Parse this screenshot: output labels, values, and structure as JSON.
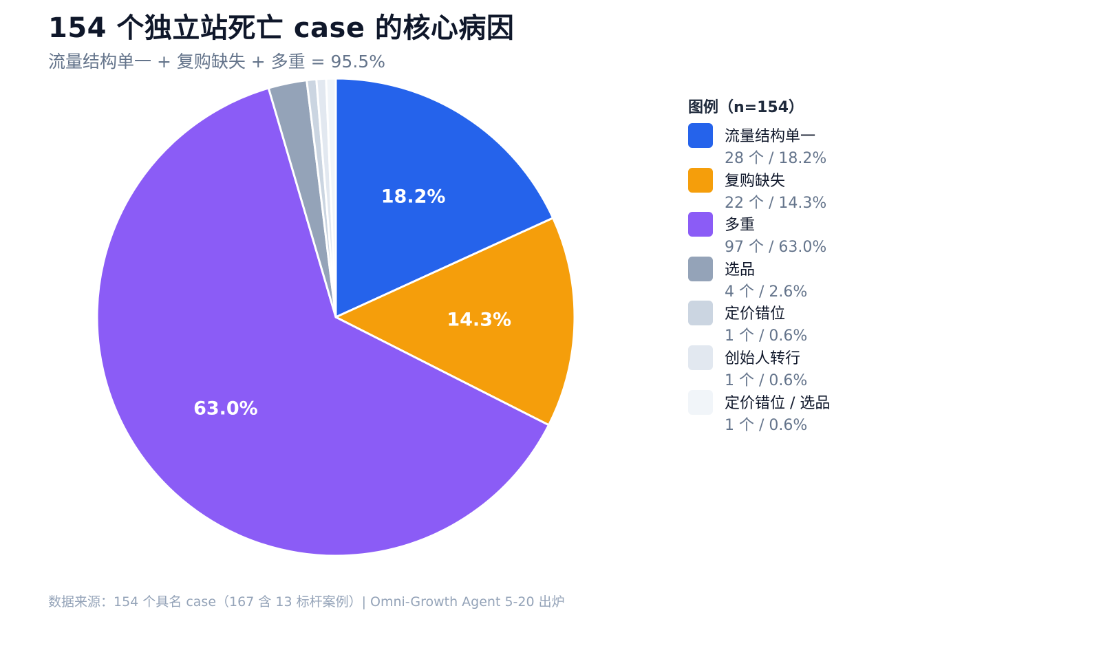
{
  "title": "154 个独立站死亡 case 的核心病因",
  "subtitle": "流量结构单一 + 复购缺失 + 多重 = 95.5%",
  "legend": {
    "title": "图例（n=154）"
  },
  "source": "数据来源：154 个具名 case（167 含 13 标杆案例）| Omni-Growth Agent 5-20 出炉",
  "chart_data": {
    "type": "pie",
    "total": 154,
    "start": "12 o'clock",
    "direction": "clockwise",
    "legend_position": "right",
    "slices": [
      {
        "label": "流量结构单一",
        "count": 28,
        "percent": 18.2,
        "count_text": "28 个 / 18.2%",
        "slice_label": "18.2%",
        "color": "#2563eb"
      },
      {
        "label": "复购缺失",
        "count": 22,
        "percent": 14.3,
        "count_text": "22 个 / 14.3%",
        "slice_label": "14.3%",
        "color": "#f59e0b"
      },
      {
        "label": "多重",
        "count": 97,
        "percent": 63.0,
        "count_text": "97 个 / 63.0%",
        "slice_label": "63.0%",
        "color": "#8b5cf6"
      },
      {
        "label": "选品",
        "count": 4,
        "percent": 2.6,
        "count_text": "4 个 / 2.6%",
        "slice_label": "",
        "color": "#94a3b8"
      },
      {
        "label": "定价错位",
        "count": 1,
        "percent": 0.6,
        "count_text": "1 个 / 0.6%",
        "slice_label": "",
        "color": "#cbd5e1"
      },
      {
        "label": "创始人转行",
        "count": 1,
        "percent": 0.6,
        "count_text": "1 个 / 0.6%",
        "slice_label": "",
        "color": "#e2e8f0"
      },
      {
        "label": "定价错位 / 选品",
        "count": 1,
        "percent": 0.6,
        "count_text": "1 个 / 0.6%",
        "slice_label": "",
        "color": "#f1f5f9"
      }
    ]
  }
}
